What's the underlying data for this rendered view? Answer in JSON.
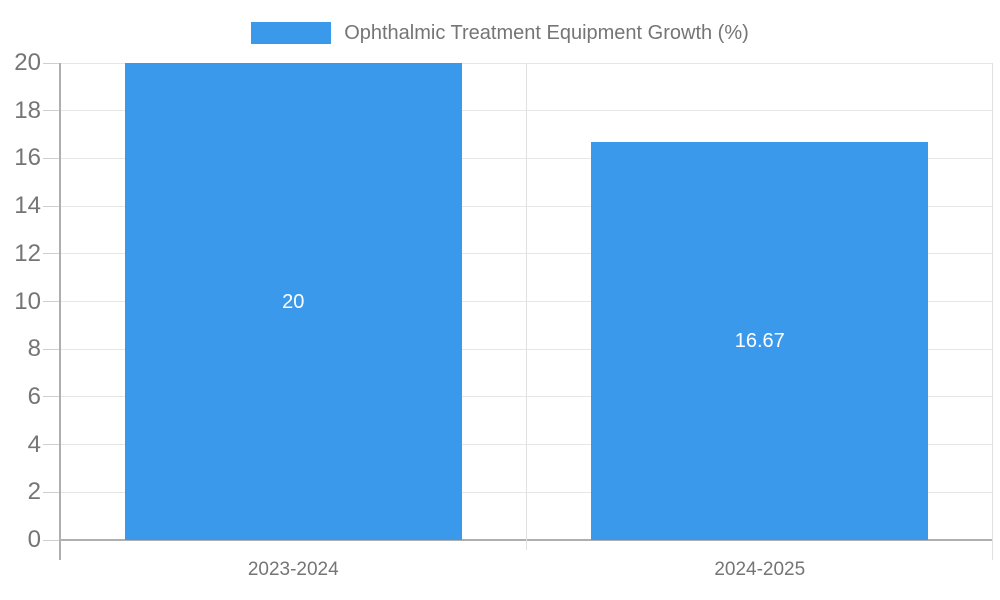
{
  "chart_data": {
    "type": "bar",
    "title": "",
    "legend": "Ophthalmic Treatment Equipment Growth (%)",
    "legend_position": "top-center",
    "categories": [
      "2023-2024",
      "2024-2025"
    ],
    "values": [
      20,
      16.67
    ],
    "value_labels": [
      "20",
      "16.67"
    ],
    "xlabel": "",
    "ylabel": "",
    "ylim": [
      0,
      20
    ],
    "ytick_step": 2,
    "ytick_labels": [
      "0",
      "2",
      "4",
      "6",
      "8",
      "10",
      "12",
      "14",
      "16",
      "18",
      "20"
    ],
    "grid": "horizontal-and-category-dividers",
    "colors": {
      "bar": "#3B99EC",
      "grid": "#E6E6E6",
      "divider": "#E0E0E0",
      "axis": "#AFAFAF",
      "tick": "#CFCFCF",
      "text": "#757575",
      "bar_label_text": "#FFFFFF",
      "background": "#FFFFFF"
    }
  }
}
